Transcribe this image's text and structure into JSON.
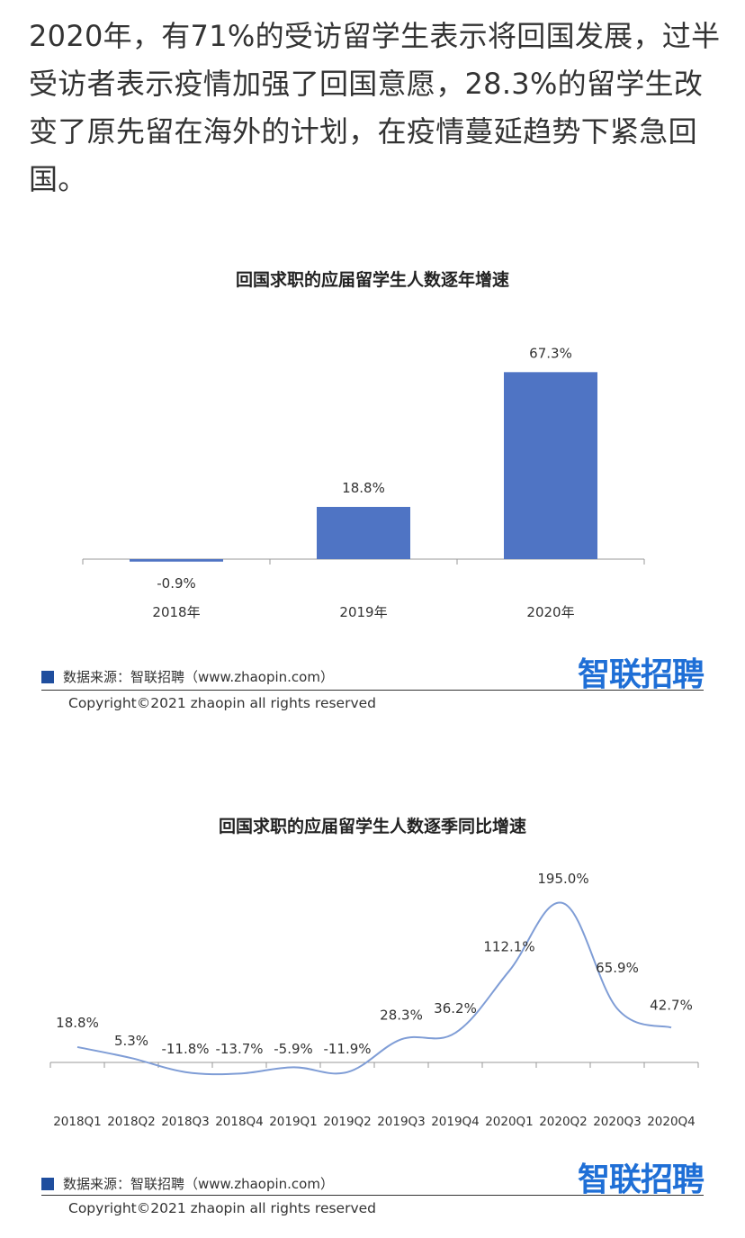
{
  "article": {
    "paragraph": "2020年，有71%的受访留学生表示将回国发展，过半受访者表示疫情加强了回国意愿，28.3%的留学生改变了原先留在海外的计划，在疫情蔓延趋势下紧急回国。"
  },
  "chart_data": [
    {
      "type": "bar",
      "title": "回国求职的应届留学生人数逐年增速",
      "categories": [
        "2018年",
        "2019年",
        "2020年"
      ],
      "values": [
        -0.9,
        18.8,
        67.3
      ],
      "value_labels": [
        "-0.9%",
        "18.8%",
        "67.3%"
      ],
      "ylim": [
        -1,
        70
      ],
      "color": "#4f74c4",
      "grid": false,
      "source": "数据来源：智联招聘（www.zhaopin.com）",
      "logo": "智联招聘",
      "copyright": "Copyright©2021 zhaopin all rights reserved"
    },
    {
      "type": "line",
      "title": "回国求职的应届留学生人数逐季同比增速",
      "categories": [
        "2018Q1",
        "2018Q2",
        "2018Q3",
        "2018Q4",
        "2019Q1",
        "2019Q2",
        "2019Q3",
        "2019Q4",
        "2020Q1",
        "2020Q2",
        "2020Q3",
        "2020Q4"
      ],
      "values": [
        18.8,
        5.3,
        -11.8,
        -13.7,
        -5.9,
        -11.9,
        28.3,
        36.2,
        112.1,
        195.0,
        65.9,
        42.7
      ],
      "value_labels": [
        "18.8%",
        "5.3%",
        "-11.8%",
        "-13.7%",
        "-5.9%",
        "-11.9%",
        "28.3%",
        "36.2%",
        "112.1%",
        "195.0%",
        "65.9%",
        "42.7%"
      ],
      "ylim": [
        -15,
        200
      ],
      "color": "#7f9dd6",
      "grid": false,
      "source": "数据来源：智联招聘（www.zhaopin.com）",
      "logo": "智联招聘",
      "copyright": "Copyright©2021 zhaopin all rights reserved"
    }
  ]
}
